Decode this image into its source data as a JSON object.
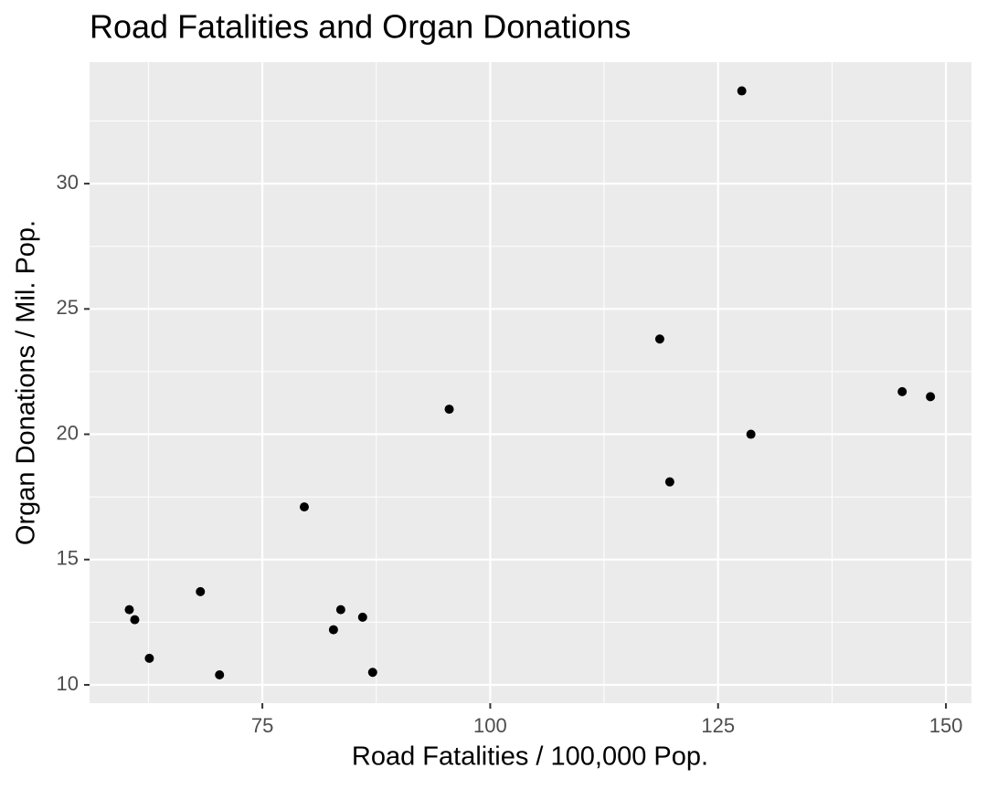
{
  "chart_data": {
    "type": "scatter",
    "title": "Road Fatalities and Organ Donations",
    "x_label": "Road Fatalities / 100,000 Pop.",
    "y_label": "Organ Donations / Mil. Pop.",
    "series": [
      {
        "color": "#000000",
        "x": [
          60.4,
          61.0,
          62.6,
          68.2,
          70.3,
          79.6,
          82.8,
          83.6,
          86.0,
          87.1,
          95.5,
          118.6,
          119.7,
          127.6,
          128.6,
          145.2,
          148.3
        ],
        "values": [
          13.0,
          12.6,
          11.06,
          13.72,
          10.4,
          17.1,
          12.2,
          13.0,
          12.7,
          10.5,
          21.0,
          23.8,
          18.1,
          33.7,
          20.0,
          21.7,
          21.5
        ]
      }
    ],
    "xlim": [
      56.04,
      152.8
    ],
    "ylim": [
      9.27,
      34.85
    ],
    "xticks": [
      75,
      100,
      125,
      150
    ],
    "yticks": [
      10,
      15,
      20,
      25,
      30
    ],
    "grid": true,
    "minor_grid": true,
    "panel_color": "#ebebeb"
  }
}
